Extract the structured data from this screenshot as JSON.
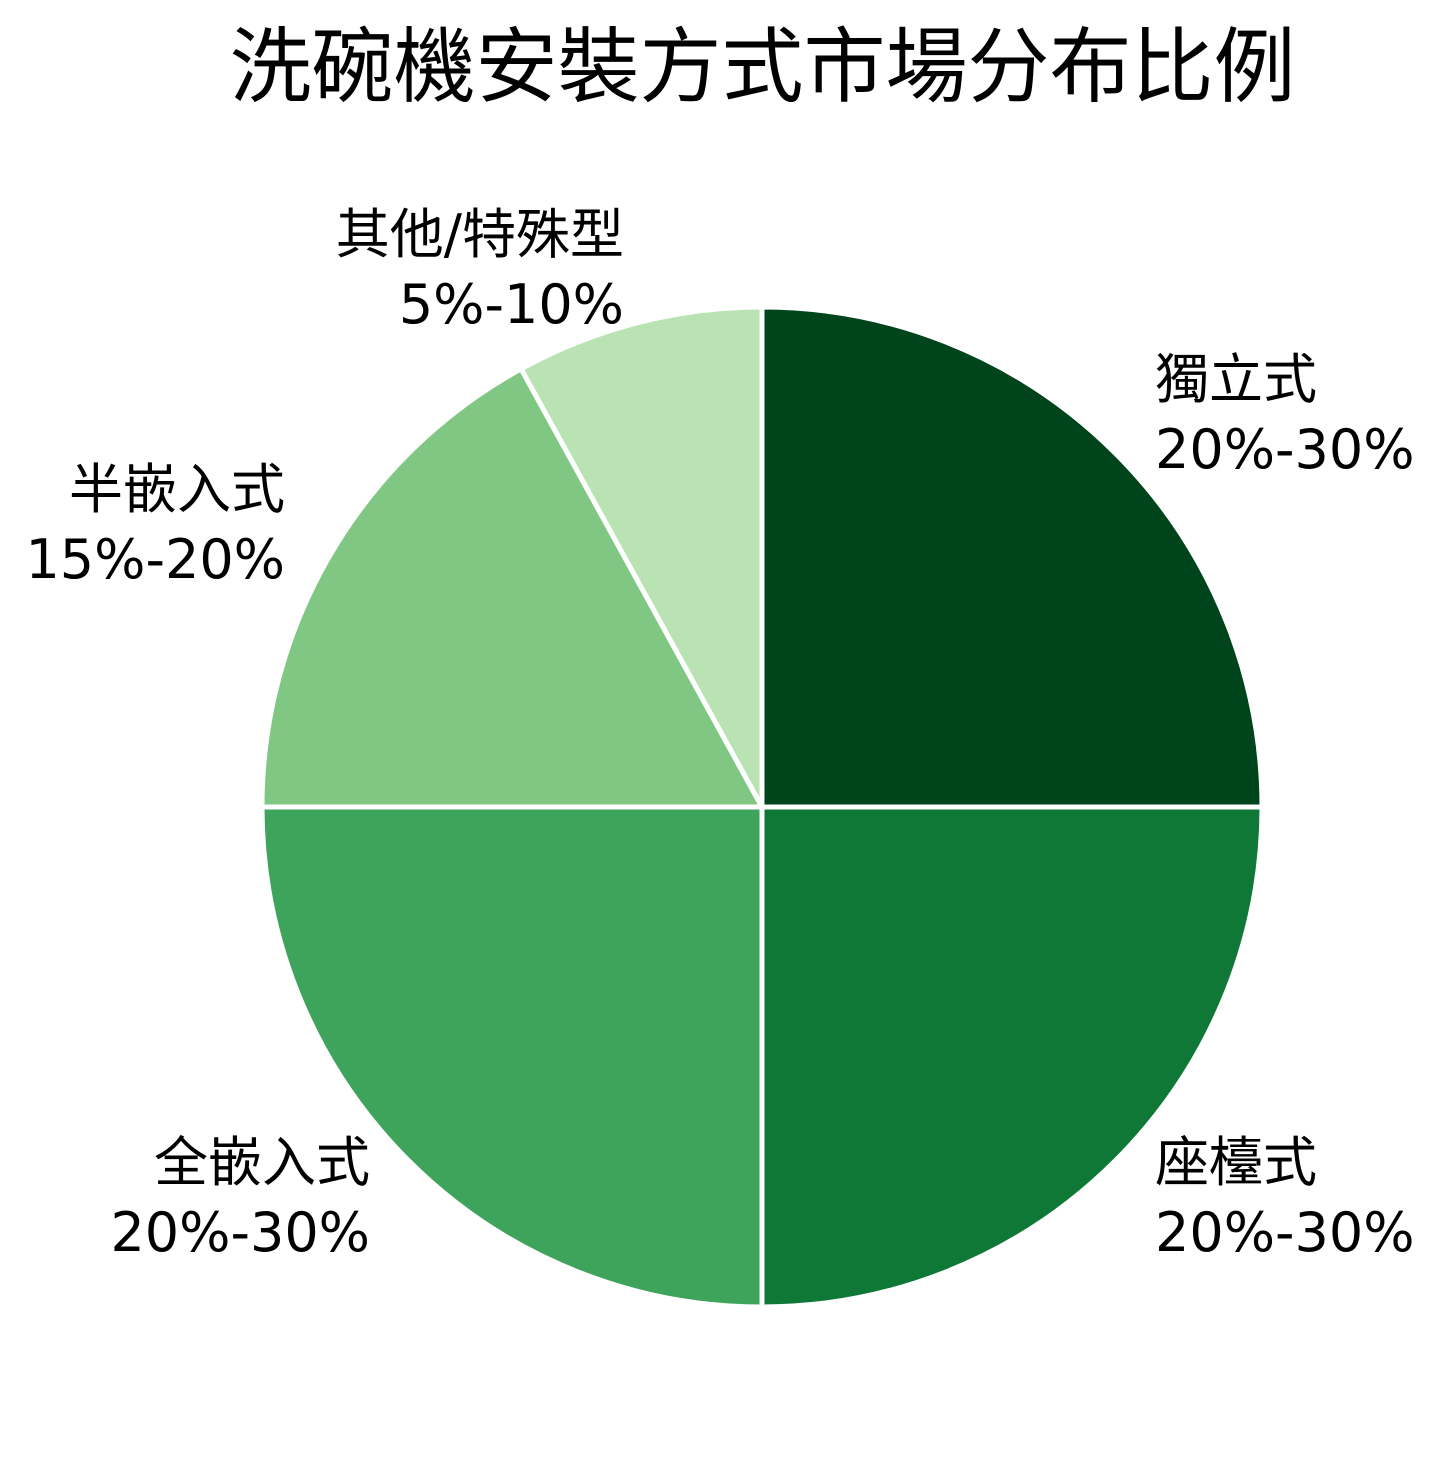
{
  "chart_data": {
    "type": "pie",
    "title": "洗碗機安裝方式市場分布比例",
    "start_angle": "12 o'clock, clockwise",
    "slices": [
      {
        "label": "獨立式",
        "range_label": "20%-30%",
        "value": 25,
        "color": "#00441b"
      },
      {
        "label": "座檯式",
        "range_label": "20%-30%",
        "value": 25,
        "color": "#0f7837"
      },
      {
        "label": "全嵌入式",
        "range_label": "20%-30%",
        "value": 25,
        "color": "#3ea45c"
      },
      {
        "label": "半嵌入式",
        "range_label": "15%-20%",
        "value": 17,
        "color": "#80c783"
      },
      {
        "label": "其他/特殊型",
        "range_label": "5%-10%",
        "value": 8,
        "color": "#b9e3b3"
      }
    ],
    "legend": "none (labels outside slices)"
  },
  "labels": {
    "independent": {
      "name": "獨立式",
      "range": "20%-30%"
    },
    "countertop": {
      "name": "座檯式",
      "range": "20%-30%"
    },
    "full_built_in": {
      "name": "全嵌入式",
      "range": "20%-30%"
    },
    "semi_built_in": {
      "name": "半嵌入式",
      "range": "15%-20%"
    },
    "other": {
      "name": "其他/特殊型",
      "range": "5%-10%"
    }
  }
}
